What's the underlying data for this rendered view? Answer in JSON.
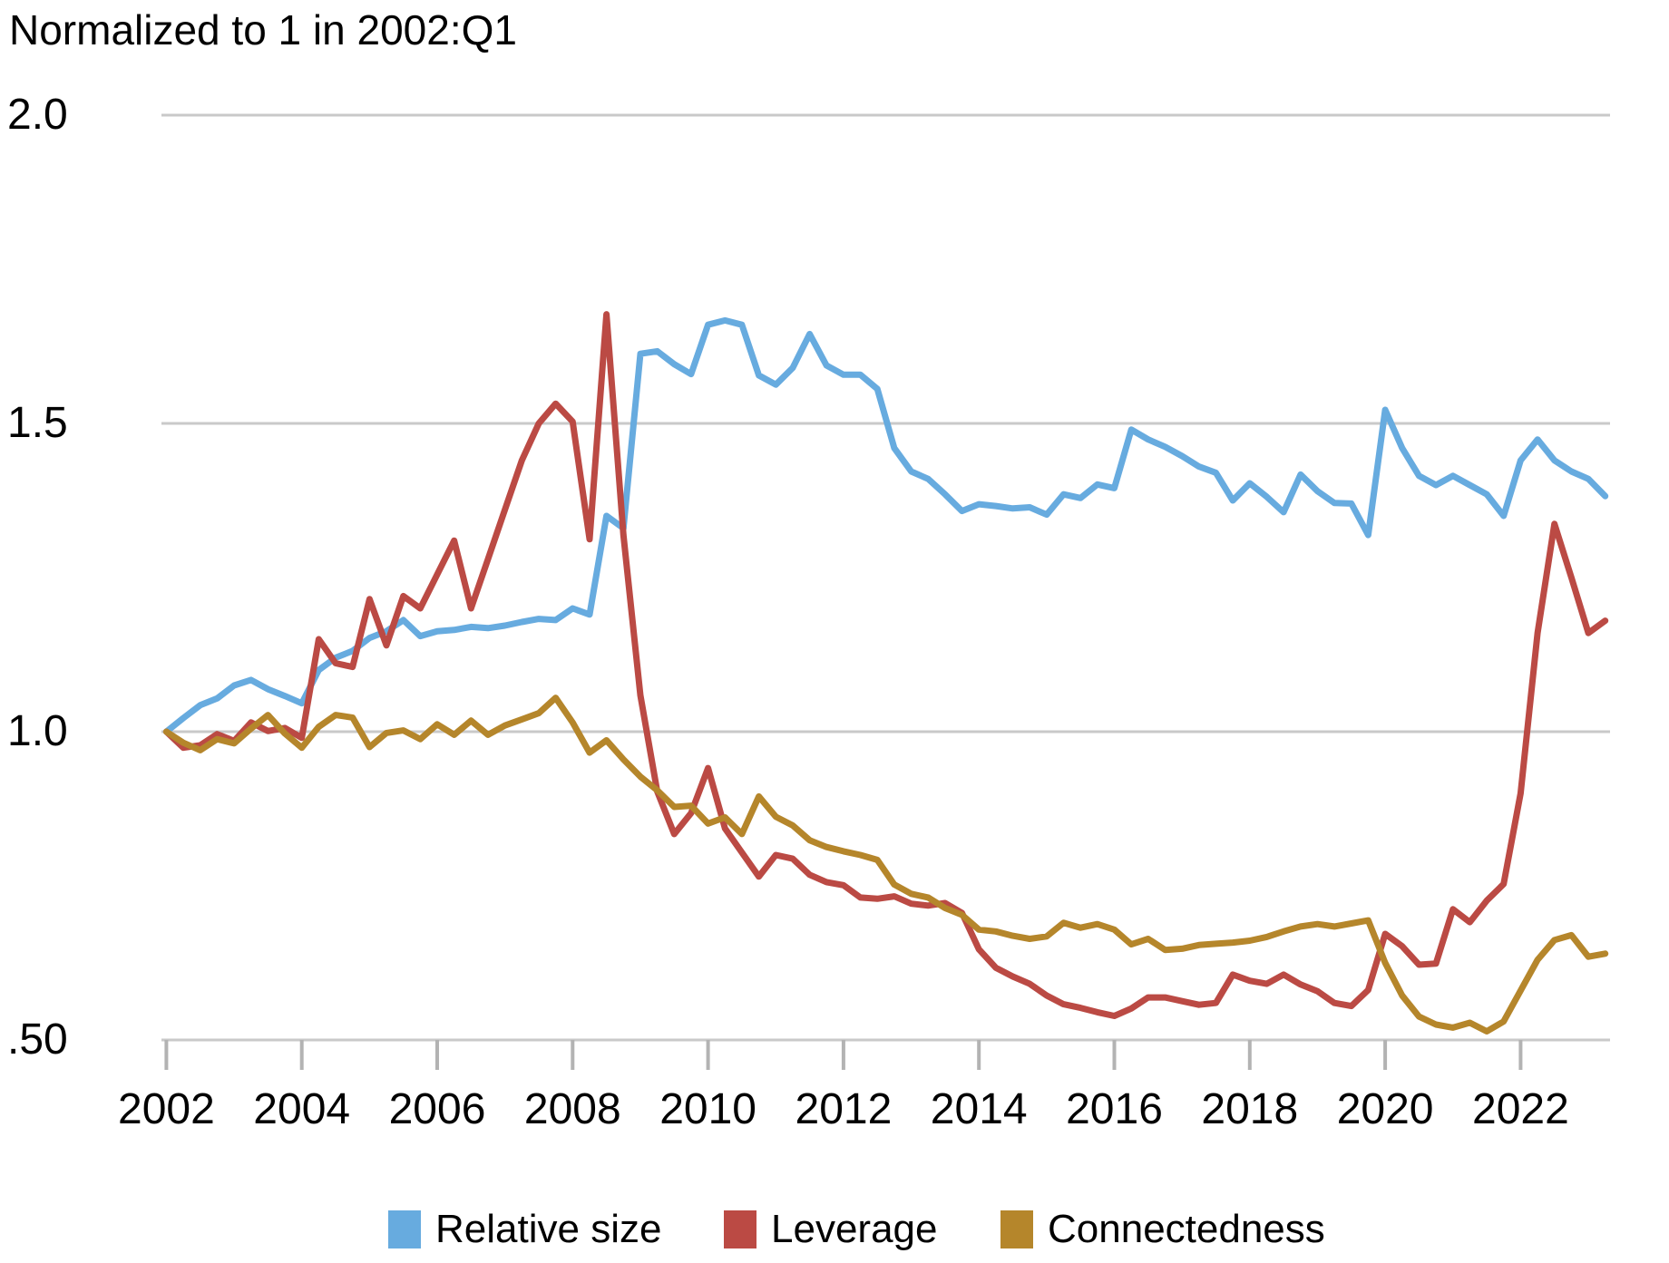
{
  "title": "Normalized to 1 in 2002:Q1",
  "chart_data": {
    "type": "line",
    "x_start_year": 2002,
    "x_step_years": 0.25,
    "x_frequency": "quarterly",
    "x_tick_years": [
      2002,
      2004,
      2006,
      2008,
      2010,
      2012,
      2014,
      2016,
      2018,
      2020,
      2022
    ],
    "y_ticks": [
      {
        "label": "2.0",
        "value": 2.0
      },
      {
        "label": "1.5",
        "value": 1.5
      },
      {
        "label": "1.0",
        "value": 1.0
      },
      {
        "label": ".50",
        "value": 0.5
      }
    ],
    "ylim": [
      0.44,
      2.06
    ],
    "grid": "horizontal",
    "legend_position": "bottom",
    "series": [
      {
        "name": "Relative size",
        "color": "#67abdf",
        "values": [
          1.0,
          1.022,
          1.043,
          1.054,
          1.075,
          1.084,
          1.069,
          1.058,
          1.046,
          1.1,
          1.12,
          1.131,
          1.152,
          1.163,
          1.181,
          1.155,
          1.163,
          1.165,
          1.17,
          1.168,
          1.172,
          1.178,
          1.183,
          1.181,
          1.2,
          1.19,
          1.35,
          1.33,
          1.613,
          1.617,
          1.596,
          1.58,
          1.66,
          1.667,
          1.66,
          1.578,
          1.563,
          1.59,
          1.645,
          1.594,
          1.579,
          1.579,
          1.556,
          1.46,
          1.422,
          1.41,
          1.385,
          1.358,
          1.369,
          1.366,
          1.362,
          1.364,
          1.352,
          1.385,
          1.379,
          1.401,
          1.395,
          1.49,
          1.474,
          1.462,
          1.447,
          1.43,
          1.42,
          1.375,
          1.403,
          1.381,
          1.356,
          1.417,
          1.39,
          1.371,
          1.37,
          1.319,
          1.522,
          1.46,
          1.415,
          1.4,
          1.415,
          1.4,
          1.385,
          1.35,
          1.44,
          1.474,
          1.44,
          1.422,
          1.41,
          1.382
        ]
      },
      {
        "name": "Leverage",
        "color": "#bb4a44",
        "values": [
          1.0,
          0.974,
          0.978,
          0.996,
          0.985,
          1.015,
          1.001,
          1.006,
          0.99,
          1.15,
          1.111,
          1.105,
          1.215,
          1.14,
          1.22,
          1.2,
          1.255,
          1.31,
          1.2,
          1.28,
          1.36,
          1.44,
          1.5,
          1.532,
          1.503,
          1.312,
          1.677,
          1.319,
          1.059,
          0.903,
          0.834,
          0.868,
          0.941,
          0.843,
          0.804,
          0.765,
          0.8,
          0.794,
          0.768,
          0.756,
          0.751,
          0.731,
          0.729,
          0.733,
          0.721,
          0.718,
          0.722,
          0.706,
          0.647,
          0.617,
          0.603,
          0.591,
          0.572,
          0.558,
          0.552,
          0.545,
          0.539,
          0.551,
          0.569,
          0.569,
          0.563,
          0.557,
          0.56,
          0.606,
          0.596,
          0.591,
          0.606,
          0.59,
          0.579,
          0.56,
          0.555,
          0.581,
          0.672,
          0.652,
          0.622,
          0.624,
          0.712,
          0.691,
          0.726,
          0.753,
          0.9,
          1.16,
          1.337,
          1.25,
          1.16,
          1.18
        ]
      },
      {
        "name": "Connectedness",
        "color": "#b5862b",
        "values": [
          1.0,
          0.982,
          0.97,
          0.988,
          0.981,
          1.005,
          1.027,
          0.997,
          0.974,
          1.008,
          1.027,
          1.023,
          0.975,
          0.998,
          1.002,
          0.988,
          1.012,
          0.995,
          1.018,
          0.995,
          1.01,
          1.02,
          1.03,
          1.055,
          1.015,
          0.966,
          0.986,
          0.955,
          0.927,
          0.905,
          0.878,
          0.88,
          0.851,
          0.861,
          0.834,
          0.895,
          0.862,
          0.848,
          0.824,
          0.813,
          0.806,
          0.8,
          0.792,
          0.752,
          0.737,
          0.731,
          0.714,
          0.703,
          0.679,
          0.676,
          0.669,
          0.664,
          0.668,
          0.69,
          0.682,
          0.688,
          0.679,
          0.655,
          0.664,
          0.646,
          0.648,
          0.654,
          0.656,
          0.658,
          0.661,
          0.667,
          0.676,
          0.684,
          0.688,
          0.684,
          0.689,
          0.694,
          0.625,
          0.572,
          0.538,
          0.525,
          0.52,
          0.528,
          0.514,
          0.53,
          0.58,
          0.63,
          0.662,
          0.67,
          0.635,
          0.64
        ]
      }
    ],
    "colors": {
      "gridline": "#c9c9c9",
      "tick": "#b3b3b3",
      "text": "#000000"
    }
  }
}
